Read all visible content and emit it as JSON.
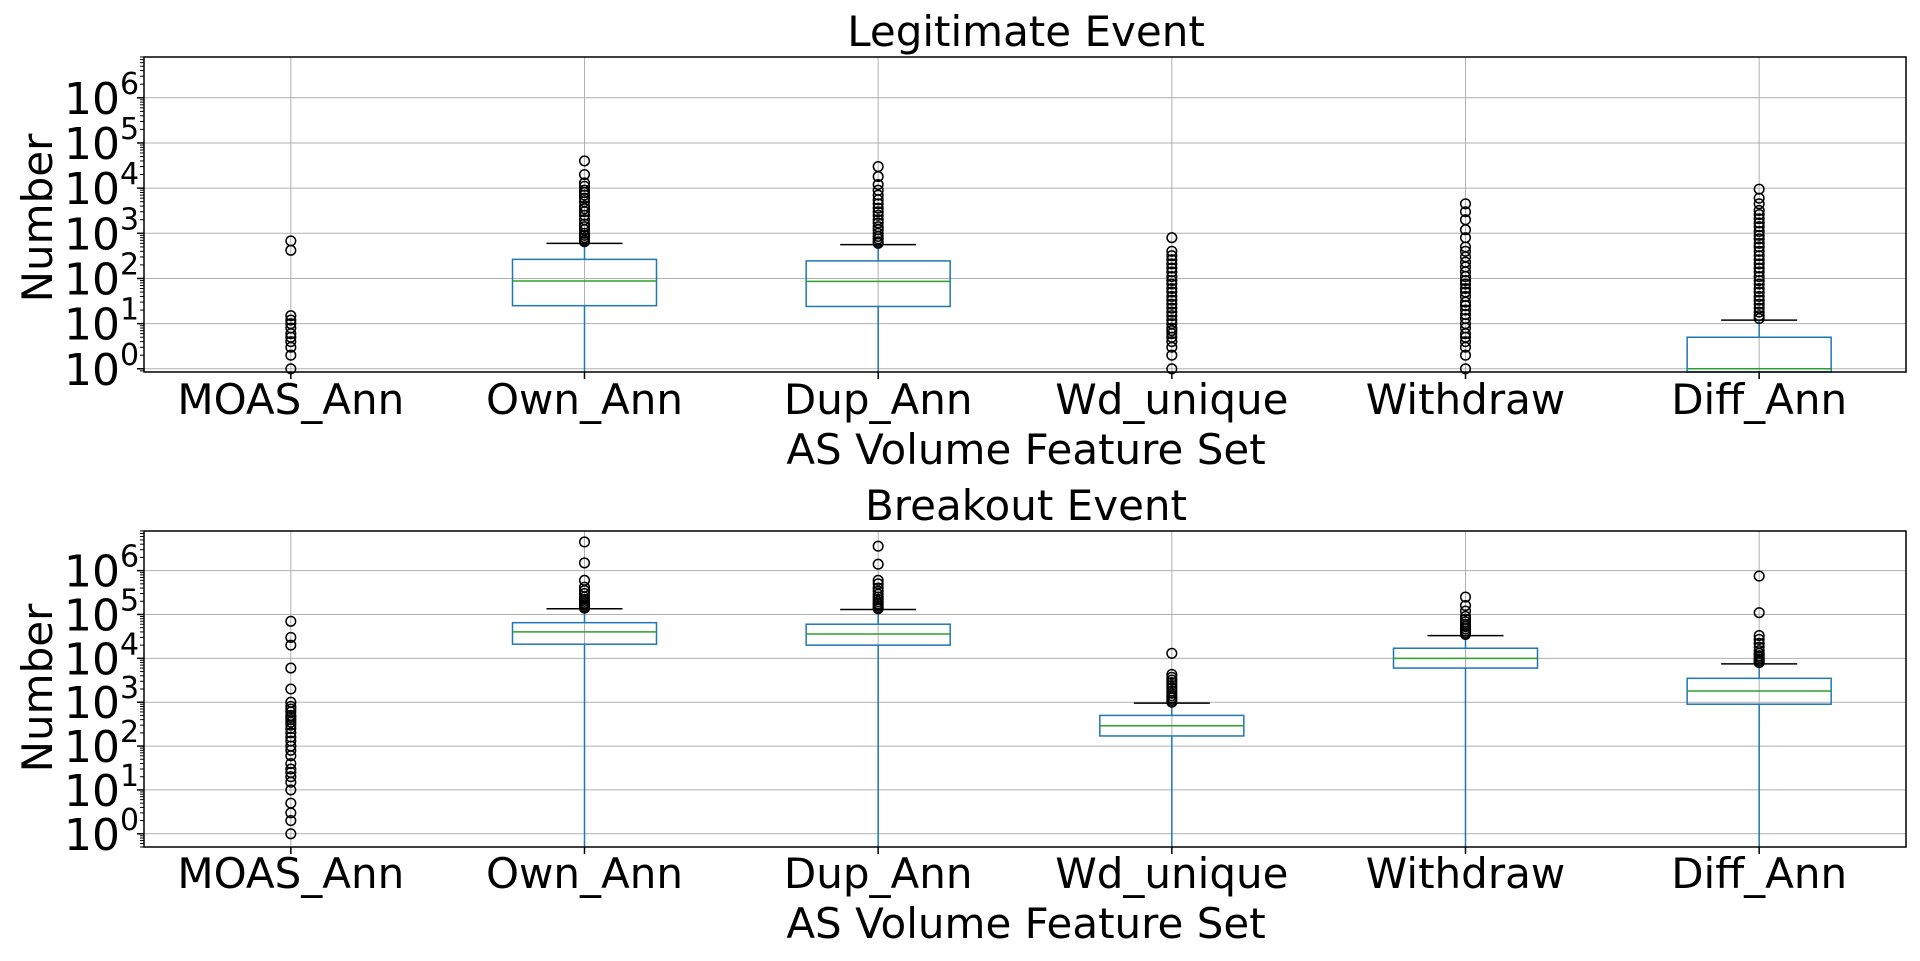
{
  "chart_data": [
    {
      "type": "box",
      "title": "Legitimate Event",
      "xlabel": "AS Volume Feature Set",
      "ylabel": "Number",
      "yscale": "log",
      "ylim": [
        0.85,
        8000000
      ],
      "yticks": [
        {
          "value": 1,
          "label": "10",
          "exp": "0"
        },
        {
          "value": 10,
          "label": "10",
          "exp": "1"
        },
        {
          "value": 100,
          "label": "10",
          "exp": "2"
        },
        {
          "value": 1000,
          "label": "10",
          "exp": "3"
        },
        {
          "value": 10000,
          "label": "10",
          "exp": "4"
        },
        {
          "value": 100000,
          "label": "10",
          "exp": "5"
        },
        {
          "value": 1000000,
          "label": "10",
          "exp": "6"
        }
      ],
      "grid": true,
      "categories": [
        "MOAS_Ann",
        "Own_Ann",
        "Dup_Ann",
        "Wd_unique",
        "Withdraw",
        "Diff_Ann"
      ],
      "boxes": [
        {
          "q1": 0,
          "median": 0,
          "q3": 0,
          "whisker_low": 0,
          "whisker_high": 0,
          "outliers": [
            1,
            2,
            3,
            4,
            5,
            6,
            8,
            10,
            12,
            15,
            420,
            680
          ]
        },
        {
          "q1": 25,
          "median": 88,
          "q3": 265,
          "whisker_low": 0,
          "whisker_high": 600,
          "outliers": [
            650,
            700,
            800,
            900,
            1000,
            1200,
            1400,
            1600,
            2000,
            2500,
            3000,
            3500,
            4000,
            5000,
            6000,
            7000,
            8000,
            9000,
            11000,
            13000,
            20000,
            40000
          ]
        },
        {
          "q1": 24,
          "median": 86,
          "q3": 245,
          "whisker_low": 0,
          "whisker_high": 560,
          "outliers": [
            600,
            650,
            750,
            850,
            1000,
            1200,
            1400,
            1700,
            2000,
            2500,
            3000,
            3600,
            4500,
            5500,
            7000,
            9000,
            12000,
            18000,
            30000
          ]
        },
        {
          "q1": 0,
          "median": 0,
          "q3": 0,
          "whisker_low": 0,
          "whisker_high": 0,
          "outliers": [
            1,
            2,
            3,
            4,
            5,
            6,
            7,
            8,
            10,
            12,
            15,
            18,
            22,
            27,
            33,
            40,
            50,
            60,
            75,
            90,
            110,
            140,
            170,
            210,
            260,
            320,
            400,
            800
          ]
        },
        {
          "q1": 0,
          "median": 0,
          "q3": 0,
          "whisker_low": 0,
          "whisker_high": 0,
          "outliers": [
            1,
            2,
            3,
            4,
            5,
            6,
            8,
            10,
            13,
            16,
            20,
            25,
            30,
            40,
            50,
            60,
            75,
            90,
            110,
            140,
            180,
            230,
            300,
            400,
            500,
            800,
            1200,
            2000,
            3000,
            4500
          ]
        },
        {
          "q1": 0,
          "median": 1,
          "q3": 5,
          "whisker_low": 0,
          "whisker_high": 12,
          "outliers": [
            13,
            15,
            18,
            22,
            27,
            33,
            40,
            50,
            60,
            75,
            90,
            110,
            140,
            170,
            210,
            260,
            320,
            400,
            500,
            600,
            750,
            900,
            1100,
            1400,
            1700,
            2100,
            2600,
            3200,
            4500,
            6000,
            9500
          ]
        }
      ]
    },
    {
      "type": "box",
      "title": "Breakout Event",
      "xlabel": "AS Volume Feature Set",
      "ylabel": "Number",
      "yscale": "log",
      "ylim": [
        0.5,
        8000000
      ],
      "yticks": [
        {
          "value": 1,
          "label": "10",
          "exp": "0"
        },
        {
          "value": 10,
          "label": "10",
          "exp": "1"
        },
        {
          "value": 100,
          "label": "10",
          "exp": "2"
        },
        {
          "value": 1000,
          "label": "10",
          "exp": "3"
        },
        {
          "value": 10000,
          "label": "10",
          "exp": "4"
        },
        {
          "value": 100000,
          "label": "10",
          "exp": "5"
        },
        {
          "value": 1000000,
          "label": "10",
          "exp": "6"
        }
      ],
      "grid": true,
      "categories": [
        "MOAS_Ann",
        "Own_Ann",
        "Dup_Ann",
        "Wd_unique",
        "Withdraw",
        "Diff_Ann"
      ],
      "boxes": [
        {
          "q1": 0,
          "median": 0,
          "q3": 0,
          "whisker_low": 0,
          "whisker_high": 0,
          "outliers": [
            1,
            2,
            3,
            5,
            10,
            15,
            20,
            25,
            30,
            40,
            60,
            80,
            100,
            130,
            160,
            200,
            250,
            300,
            350,
            400,
            450,
            500,
            600,
            700,
            800,
            1000,
            2000,
            6000,
            20000,
            30000,
            70000
          ]
        },
        {
          "q1": 21000,
          "median": 40000,
          "q3": 65000,
          "whisker_low": 0,
          "whisker_high": 135000,
          "outliers": [
            140000,
            150000,
            165000,
            180000,
            200000,
            220000,
            250000,
            300000,
            350000,
            420000,
            600000,
            1500000,
            4500000
          ]
        },
        {
          "q1": 20000,
          "median": 36000,
          "q3": 60000,
          "whisker_low": 0,
          "whisker_high": 130000,
          "outliers": [
            135000,
            145000,
            160000,
            175000,
            195000,
            220000,
            250000,
            290000,
            340000,
            400000,
            500000,
            600000,
            1400000,
            3600000
          ]
        },
        {
          "q1": 170,
          "median": 290,
          "q3": 500,
          "whisker_low": 0,
          "whisker_high": 950,
          "outliers": [
            1000,
            1100,
            1250,
            1400,
            1600,
            1800,
            2100,
            2400,
            2800,
            3200,
            3700,
            4300,
            13000
          ]
        },
        {
          "q1": 6000,
          "median": 10000,
          "q3": 17000,
          "whisker_low": 0,
          "whisker_high": 33000,
          "outliers": [
            35000,
            38000,
            42000,
            47000,
            53000,
            60000,
            68000,
            78000,
            90000,
            120000,
            160000,
            250000
          ]
        },
        {
          "q1": 900,
          "median": 1800,
          "q3": 3500,
          "whisker_low": 0,
          "whisker_high": 7500,
          "outliers": [
            8000,
            8700,
            9500,
            10500,
            11500,
            13000,
            15000,
            18000,
            22000,
            27000,
            33000,
            110000,
            750000
          ]
        }
      ]
    }
  ]
}
